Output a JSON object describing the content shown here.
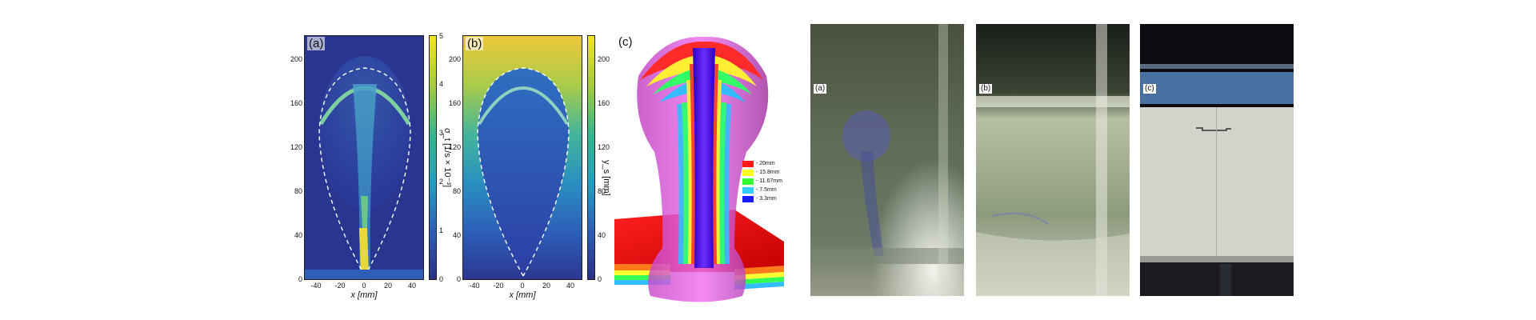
{
  "panel_a": {
    "tag": "(a)",
    "x_ticks": [
      "-40",
      "-20",
      "0",
      "20",
      "40"
    ],
    "y_ticks": [
      "0",
      "40",
      "80",
      "120",
      "160",
      "200"
    ],
    "x_label": "x [mm]",
    "cb_ticks": [
      "0",
      "1",
      "2",
      "3",
      "4",
      "5"
    ],
    "cb_label": "σ_t [1/s × 10⁻³]"
  },
  "panel_b": {
    "tag": "(b)",
    "x_ticks": [
      "-40",
      "-20",
      "0",
      "20",
      "40"
    ],
    "y_ticks": [
      "0",
      "40",
      "80",
      "120",
      "160",
      "200"
    ],
    "x_label": "x [mm]",
    "cb_ticks": [
      "0",
      "40",
      "80",
      "120",
      "160",
      "200"
    ],
    "cb_label": "y_s [mm]"
  },
  "panel_c": {
    "tag": "(c)",
    "legend": [
      {
        "label": "- 20mm",
        "color": "#ff1a1a"
      },
      {
        "label": "- 15.8mm",
        "color": "#ffff1a"
      },
      {
        "label": "- 11.67mm",
        "color": "#33ff33"
      },
      {
        "label": "- 7.5mm",
        "color": "#33ccff"
      },
      {
        "label": "- 3.3mm",
        "color": "#1a1aff"
      }
    ]
  },
  "photos": [
    {
      "tag": "(a)"
    },
    {
      "tag": "(b)"
    },
    {
      "tag": "(c)"
    }
  ]
}
